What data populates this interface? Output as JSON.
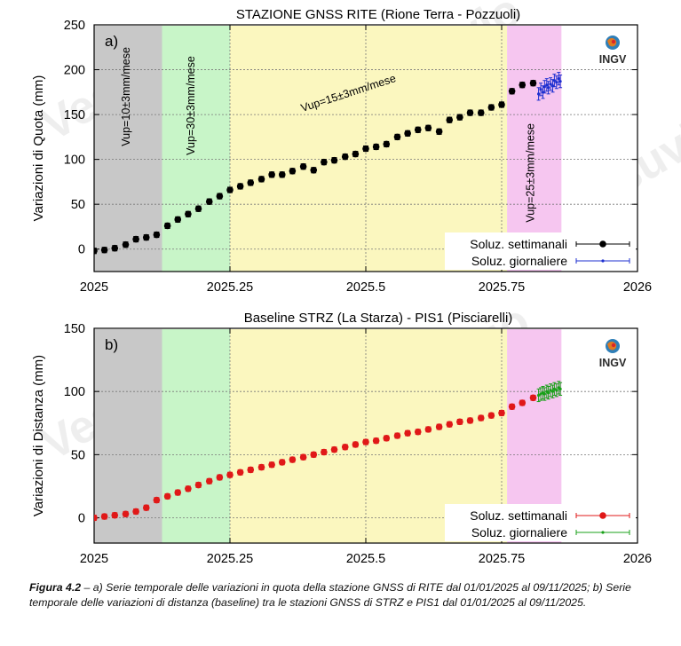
{
  "watermark": "Vesuvio",
  "chart_data": [
    {
      "type": "scatter",
      "panel_label": "a)",
      "title": "STAZIONE GNSS RITE (Rione Terra - Pozzuoli)",
      "xlabel": "",
      "ylabel": "Variazioni di Quota (mm)",
      "xlim": [
        2025,
        2026
      ],
      "ylim": [
        -25,
        250
      ],
      "xticks": [
        2025,
        2025.25,
        2025.5,
        2025.75,
        2026
      ],
      "xtick_labels": [
        "2025",
        "2025.25",
        "2025.5",
        "2025.75",
        "2026"
      ],
      "yticks": [
        0,
        50,
        100,
        150,
        200,
        250
      ],
      "ytick_labels": [
        "0",
        "50",
        "100",
        "150",
        "200",
        "250"
      ],
      "grid": true,
      "legend": "bottom-right",
      "logo_text": "INGV",
      "bands": [
        {
          "x0": 2025,
          "x1": 2025.125,
          "color": "#c8c8c8"
        },
        {
          "x0": 2025.125,
          "x1": 2025.25,
          "color": "#c8f5c8"
        },
        {
          "x0": 2025.25,
          "x1": 2025.76,
          "color": "#fbf7bf"
        },
        {
          "x0": 2025.76,
          "x1": 2025.86,
          "color": "#f6c6f0"
        }
      ],
      "annotations": [
        {
          "text": "Vup=10±3mm/mese",
          "x": 2025.065,
          "y": 170,
          "rotate": -90
        },
        {
          "text": "Vup=30±3mm/mese",
          "x": 2025.185,
          "y": 160,
          "rotate": -90
        },
        {
          "text": "Vup=15±3mm/mese",
          "x": 2025.47,
          "y": 170,
          "rotate": -18
        },
        {
          "text": "Vup=25±3mm/mese",
          "x": 2025.81,
          "y": 85,
          "rotate": -90
        }
      ],
      "series": [
        {
          "name": "Soluz. settimanali",
          "color": "#000000",
          "marker": "big",
          "x": [
            2025.0,
            2025.019,
            2025.038,
            2025.058,
            2025.077,
            2025.096,
            2025.115,
            2025.135,
            2025.154,
            2025.173,
            2025.192,
            2025.212,
            2025.231,
            2025.25,
            2025.269,
            2025.288,
            2025.308,
            2025.327,
            2025.346,
            2025.365,
            2025.385,
            2025.404,
            2025.423,
            2025.442,
            2025.462,
            2025.481,
            2025.5,
            2025.519,
            2025.538,
            2025.558,
            2025.577,
            2025.596,
            2025.615,
            2025.635,
            2025.654,
            2025.673,
            2025.692,
            2025.712,
            2025.731,
            2025.75,
            2025.769,
            2025.788,
            2025.808
          ],
          "y": [
            -2,
            -1,
            1,
            5,
            11,
            13,
            16,
            26,
            33,
            39,
            45,
            53,
            59,
            66,
            70,
            74,
            78,
            83,
            83,
            87,
            92,
            88,
            97,
            99,
            103,
            106,
            112,
            114,
            117,
            125,
            129,
            133,
            135,
            131,
            144,
            147,
            152,
            152,
            158,
            161,
            176,
            183,
            185
          ],
          "yerr": 3
        },
        {
          "name": "Soluz. giornaliere",
          "color": "#1c2fd0",
          "marker": "small",
          "x": [
            2025.818,
            2025.822,
            2025.826,
            2025.829,
            2025.833,
            2025.836,
            2025.84,
            2025.844,
            2025.847,
            2025.851,
            2025.855,
            2025.858
          ],
          "y": [
            173,
            178,
            175,
            181,
            183,
            180,
            184,
            182,
            188,
            186,
            190,
            187
          ],
          "yerr": 7
        }
      ]
    },
    {
      "type": "scatter",
      "panel_label": "b)",
      "title": "Baseline STRZ (La Starza) - PIS1 (Pisciarelli)",
      "xlabel": "",
      "ylabel": "Variazioni di Distanza (mm)",
      "xlim": [
        2025,
        2026
      ],
      "ylim": [
        -20,
        150
      ],
      "xticks": [
        2025,
        2025.25,
        2025.5,
        2025.75,
        2026
      ],
      "xtick_labels": [
        "2025",
        "2025.25",
        "2025.5",
        "2025.75",
        "2026"
      ],
      "yticks": [
        0,
        50,
        100,
        150
      ],
      "ytick_labels": [
        "0",
        "50",
        "100",
        "150"
      ],
      "grid": true,
      "legend": "bottom-right",
      "logo_text": "INGV",
      "bands": [
        {
          "x0": 2025,
          "x1": 2025.125,
          "color": "#c8c8c8"
        },
        {
          "x0": 2025.125,
          "x1": 2025.25,
          "color": "#c8f5c8"
        },
        {
          "x0": 2025.25,
          "x1": 2025.76,
          "color": "#fbf7bf"
        },
        {
          "x0": 2025.76,
          "x1": 2025.86,
          "color": "#f6c6f0"
        }
      ],
      "annotations": [],
      "series": [
        {
          "name": "Soluz. settimanali",
          "color": "#e01818",
          "marker": "big",
          "x": [
            2025.0,
            2025.019,
            2025.038,
            2025.058,
            2025.077,
            2025.096,
            2025.115,
            2025.135,
            2025.154,
            2025.173,
            2025.192,
            2025.212,
            2025.231,
            2025.25,
            2025.269,
            2025.288,
            2025.308,
            2025.327,
            2025.346,
            2025.365,
            2025.385,
            2025.404,
            2025.423,
            2025.442,
            2025.462,
            2025.481,
            2025.5,
            2025.519,
            2025.538,
            2025.558,
            2025.577,
            2025.596,
            2025.615,
            2025.635,
            2025.654,
            2025.673,
            2025.692,
            2025.712,
            2025.731,
            2025.75,
            2025.769,
            2025.788,
            2025.808
          ],
          "y": [
            0,
            1,
            2,
            3,
            5,
            8,
            14,
            17,
            20,
            23,
            26,
            29,
            32,
            34,
            36,
            38,
            40,
            42,
            44,
            46,
            48,
            50,
            52,
            54,
            56,
            58,
            60,
            61,
            63,
            65,
            67,
            68,
            70,
            72,
            74,
            76,
            77,
            79,
            81,
            83,
            88,
            91,
            95
          ],
          "yerr": 2
        },
        {
          "name": "Soluz. giornaliere",
          "color": "#18a018",
          "marker": "small",
          "x": [
            2025.818,
            2025.822,
            2025.826,
            2025.829,
            2025.833,
            2025.836,
            2025.84,
            2025.844,
            2025.847,
            2025.851,
            2025.855,
            2025.858
          ],
          "y": [
            97,
            98,
            99,
            98,
            100,
            99,
            101,
            100,
            102,
            101,
            103,
            102
          ],
          "yerr": 5
        }
      ]
    }
  ],
  "caption": {
    "label": "Figura 4.2",
    "text": " – a) Serie temporale delle variazioni in quota della stazione GNSS di RITE dal 01/01/2025 al 09/11/2025; b) Serie temporale delle variazioni di distanza (baseline) tra le stazioni GNSS di STRZ e PIS1 dal 01/01/2025 al 09/11/2025."
  }
}
